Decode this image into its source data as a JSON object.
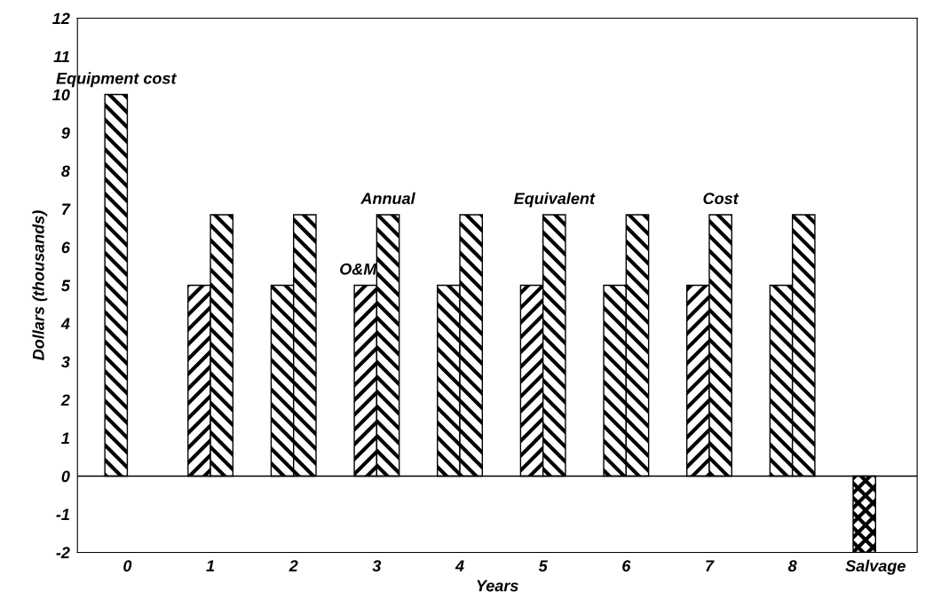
{
  "chart_data": {
    "type": "bar",
    "xlabel": "Years",
    "ylabel": "Dollars (thousands)",
    "categories": [
      "0",
      "1",
      "2",
      "3",
      "4",
      "5",
      "6",
      "7",
      "8",
      "Salvage"
    ],
    "series": [
      {
        "color": "#000000",
        "values": [
          10,
          5,
          5,
          5,
          5,
          5,
          5,
          5,
          5,
          null
        ]
      },
      {
        "color": "#000000",
        "values": [
          null,
          6.85,
          6.85,
          6.85,
          6.85,
          6.85,
          6.85,
          6.85,
          6.85,
          null
        ]
      },
      {
        "color": "#000000",
        "values": [
          null,
          null,
          null,
          null,
          null,
          null,
          null,
          null,
          null,
          -2
        ]
      }
    ],
    "ylim": [
      -2,
      12
    ],
    "yticks": [
      -2,
      -1,
      0,
      1,
      2,
      3,
      4,
      5,
      6,
      7,
      8,
      9,
      10,
      11,
      12
    ],
    "grid": false,
    "legend": false,
    "ref_lines": [
      {
        "axis": "y",
        "value": 0,
        "color": "#000000"
      }
    ],
    "annotations": [
      {
        "text": "Equipment cost",
        "x": "0",
        "y": 10
      },
      {
        "text": "O&M",
        "x": "3",
        "y": 5
      },
      {
        "text": "Annual",
        "x": "3",
        "y": 6.85
      },
      {
        "text": "Equivalent",
        "x": "5",
        "y": 6.85
      },
      {
        "text": "Cost",
        "x": "7",
        "y": 6.85
      }
    ]
  }
}
